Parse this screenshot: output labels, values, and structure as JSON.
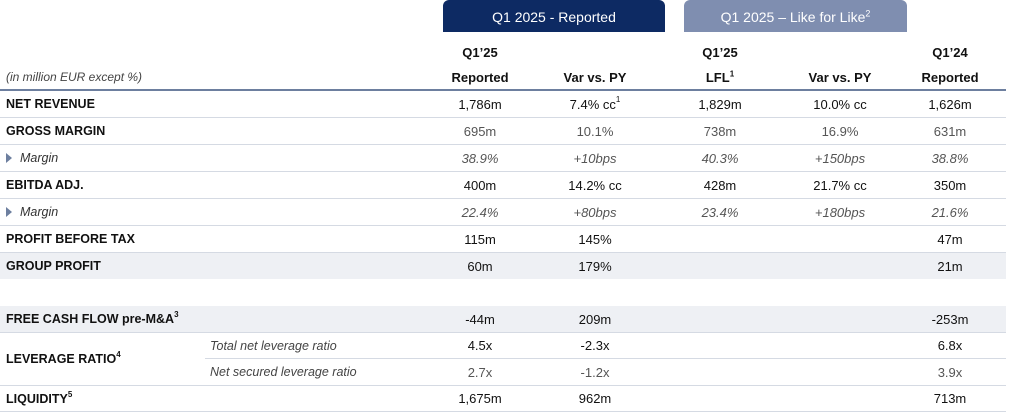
{
  "pills": {
    "reported": "Q1 2025 - Reported",
    "lfl": "Q1 2025 – Like for Like",
    "lfl_sup": "2"
  },
  "headers": {
    "col1_line1": "Q1’25",
    "col1_line2": "Reported",
    "col2_line2": "Var vs. PY",
    "col3_line1": "Q1’25",
    "col3_line2": "LFL",
    "col3_sup": "1",
    "col4_line2": "Var vs. PY",
    "col5_line1": "Q1’24",
    "col5_line2": "Reported",
    "unit_note": "(in million EUR except %)"
  },
  "rows": {
    "net_revenue": {
      "label": "NET REVENUE",
      "c1": "1,786m",
      "c2": "7.4% cc",
      "c2_sup": "1",
      "c3": "1,829m",
      "c4": "10.0% cc",
      "c5": "1,626m"
    },
    "gross_margin": {
      "label": "GROSS MARGIN",
      "c1": "695m",
      "c2": "10.1%",
      "c3": "738m",
      "c4": "16.9%",
      "c5": "631m"
    },
    "gm_margin": {
      "label": "Margin",
      "c1": "38.9%",
      "c2": "+10bps",
      "c3": "40.3%",
      "c4": "+150bps",
      "c5": "38.8%"
    },
    "ebitda": {
      "label": "EBITDA ADJ.",
      "c1": "400m",
      "c2": "14.2% cc",
      "c3": "428m",
      "c4": "21.7% cc",
      "c5": "350m"
    },
    "ebitda_margin": {
      "label": "Margin",
      "c1": "22.4%",
      "c2": "+80bps",
      "c3": "23.4%",
      "c4": "+180bps",
      "c5": "21.6%"
    },
    "pbt": {
      "label": "PROFIT BEFORE TAX",
      "c1": "115m",
      "c2": "145%",
      "c5": "47m"
    },
    "group_profit": {
      "label": "GROUP PROFIT",
      "c1": "60m",
      "c2": "179%",
      "c5": "21m"
    },
    "fcf": {
      "label": "FREE CASH FLOW pre-M&A",
      "sup": "3",
      "c1": "-44m",
      "c2": "209m",
      "c5": "-253m"
    },
    "leverage": {
      "label": "LEVERAGE RATIO",
      "sup": "4",
      "total": {
        "label": "Total net leverage ratio",
        "c1": "4.5x",
        "c2": "-2.3x",
        "c5": "6.8x"
      },
      "secured": {
        "label": "Net secured leverage ratio",
        "c1": "2.7x",
        "c2": "-1.2x",
        "c5": "3.9x"
      }
    },
    "liquidity": {
      "label": "LIQUIDITY",
      "sup": "5",
      "c1": "1,675m",
      "c2": "962m",
      "c5": "713m"
    }
  }
}
